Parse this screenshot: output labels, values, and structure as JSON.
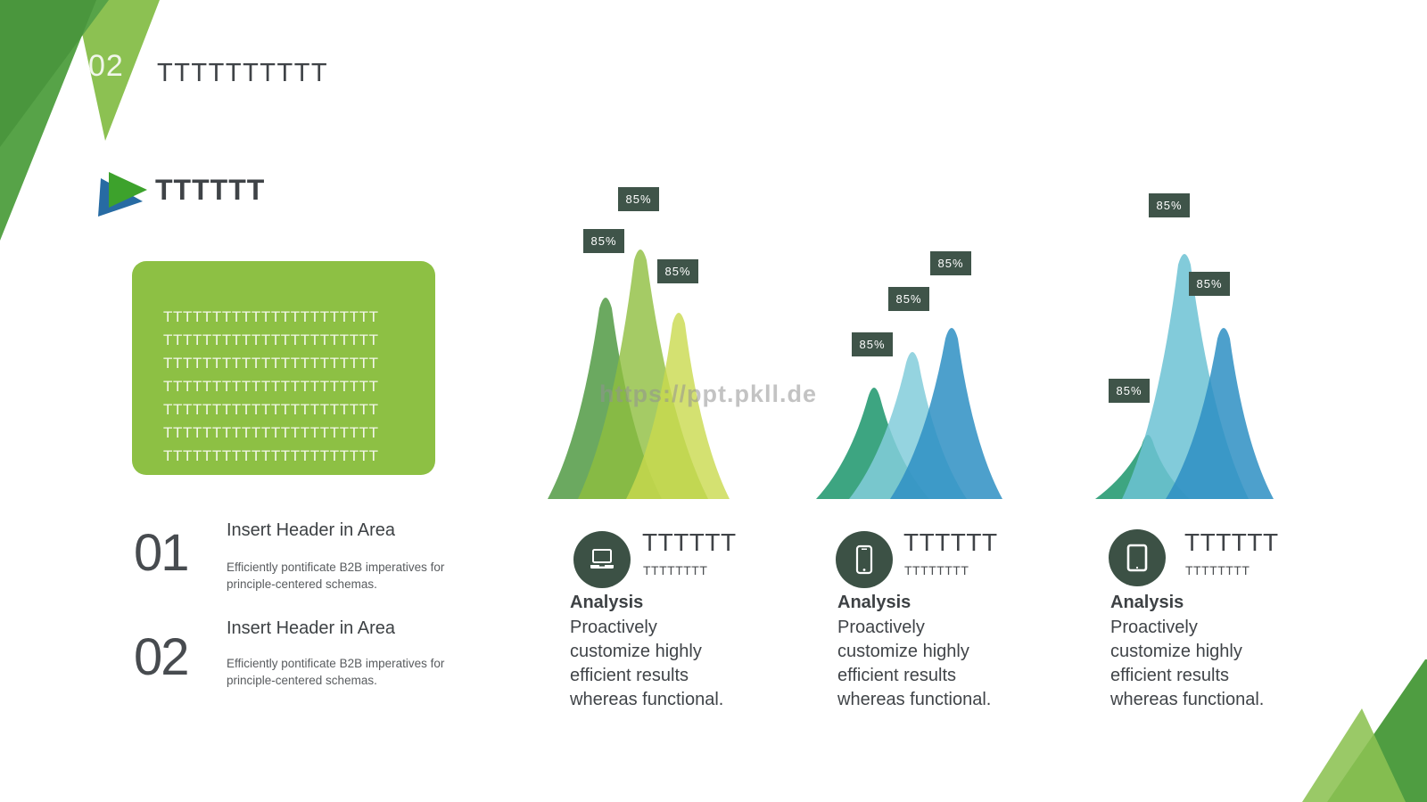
{
  "slide": {
    "section_number": "02",
    "section_title": "TTTTTTTTTT",
    "heading": "TTTTTT",
    "watermark": "https://ppt.pkll.de"
  },
  "text_box": {
    "rows": [
      "TTTTTTTTTTTTTTTTTTTTTT",
      "TTTTTTTTTTTTTTTTTTTTTT",
      "TTTTTTTTTTTTTTTTTTTTTT",
      "TTTTTTTTTTTTTTTTTTTTTT",
      "TTTTTTTTTTTTTTTTTTTTTT",
      "TTTTTTTTTTTTTTTTTTTTTT",
      "TTTTTTTTTTTTTTTTTTTTTT"
    ]
  },
  "steps": [
    {
      "number": "01",
      "header": "Insert Header in Area",
      "description": "Efficiently pontificate B2B imperatives for principle-centered schemas."
    },
    {
      "number": "02",
      "header": "Insert Header in Area",
      "description": "Efficiently pontificate B2B imperatives for principle-centered schemas."
    }
  ],
  "columns": [
    {
      "icon": "laptop-icon",
      "title": "TTTTTT",
      "subtitle": "TTTTTTTT",
      "label": "Analysis",
      "description": "Proactively customize highly efficient results whereas functional."
    },
    {
      "icon": "smartphone-icon",
      "title": "TTTTTT",
      "subtitle": "TTTTTTTT",
      "label": "Analysis",
      "description": "Proactively customize highly efficient results whereas functional."
    },
    {
      "icon": "tablet-icon",
      "title": "TTTTTT",
      "subtitle": "TTTTTTTT",
      "label": "Analysis",
      "description": "Proactively customize highly efficient results whereas functional."
    }
  ],
  "chart_data": [
    {
      "type": "area",
      "style": "overlapping-mountain-peaks",
      "values": [
        85,
        85,
        85
      ],
      "labels": [
        "85%",
        "85%",
        "85%"
      ],
      "palette": [
        "#63a457",
        "#8ebe3f",
        "#c9d94e"
      ],
      "label_background": "#3f5449"
    },
    {
      "type": "area",
      "style": "overlapping-mountain-peaks",
      "values": [
        85,
        85,
        85
      ],
      "labels": [
        "85%",
        "85%",
        "85%"
      ],
      "palette": [
        "#33a07a",
        "#82ccda",
        "#2e8fc3"
      ],
      "label_background": "#3f5449"
    },
    {
      "type": "area",
      "style": "overlapping-mountain-peaks",
      "values": [
        85,
        85,
        85
      ],
      "labels": [
        "85%",
        "85%",
        "85%"
      ],
      "palette": [
        "#33a07a",
        "#6cc2d3",
        "#2e8fc3"
      ],
      "label_background": "#3f5449"
    }
  ],
  "colors": {
    "accent_green_dark": "#57a348",
    "accent_green_light": "#8cc152",
    "slate": "#3c5145",
    "text_dark": "#3f4347"
  }
}
